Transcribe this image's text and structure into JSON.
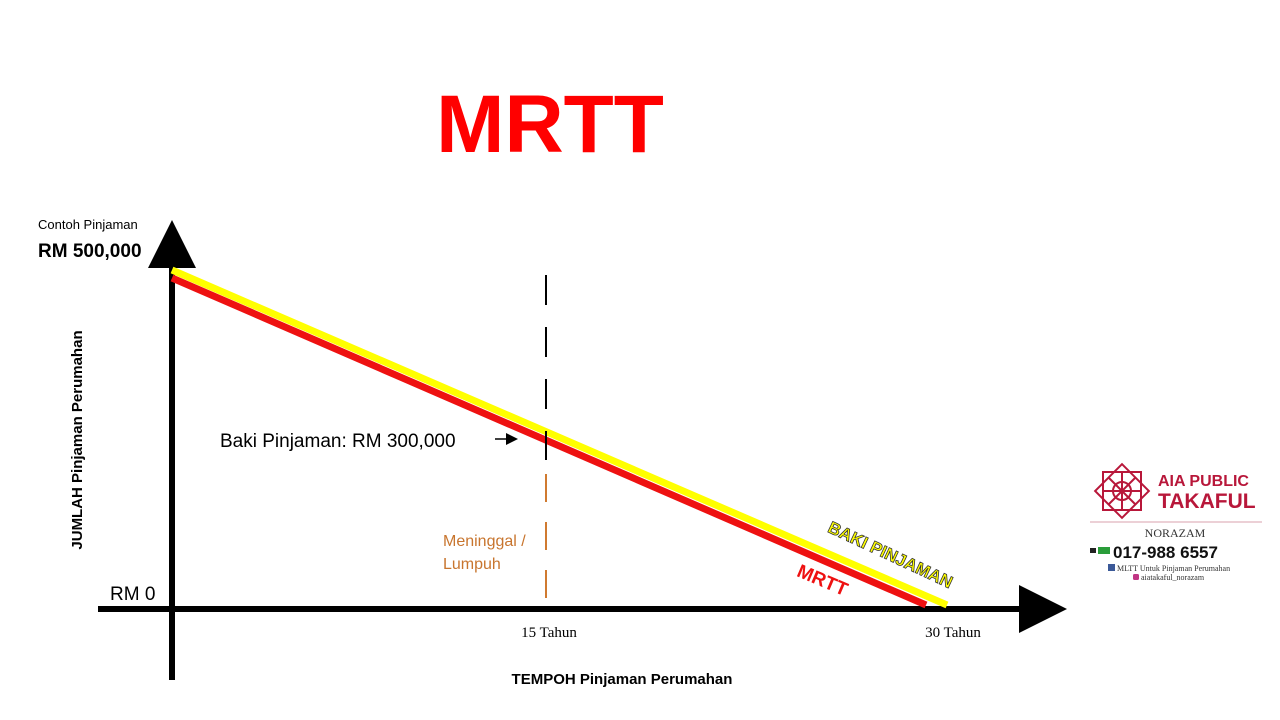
{
  "title": "MRTT",
  "y_axis": {
    "caption": "Contoh Pinjaman",
    "top_value": "RM 500,000",
    "bottom_value": "RM 0",
    "label": "JUMLAH Pinjaman Perumahan"
  },
  "x_axis": {
    "mid_tick": "15 Tahun",
    "end_tick": "30 Tahun",
    "label": "TEMPOH Pinjaman Perumahan"
  },
  "annotations": {
    "balance": "Baki Pinjaman: RM 300,000",
    "event_line1": "Meninggal /",
    "event_line2": "Lumpuh"
  },
  "line_labels": {
    "balance_line": "BAKI PINJAMAN",
    "mrtt_line": "MRTT"
  },
  "logo": {
    "brand_line1": "AIA PUBLIC",
    "brand_line2": "TAKAFUL",
    "agent": "NORAZAM",
    "phone": "017-988 6557",
    "facebook": "MLTT Untuk Pinjaman Perumahan",
    "instagram": "aiatakaful_norazam"
  }
}
